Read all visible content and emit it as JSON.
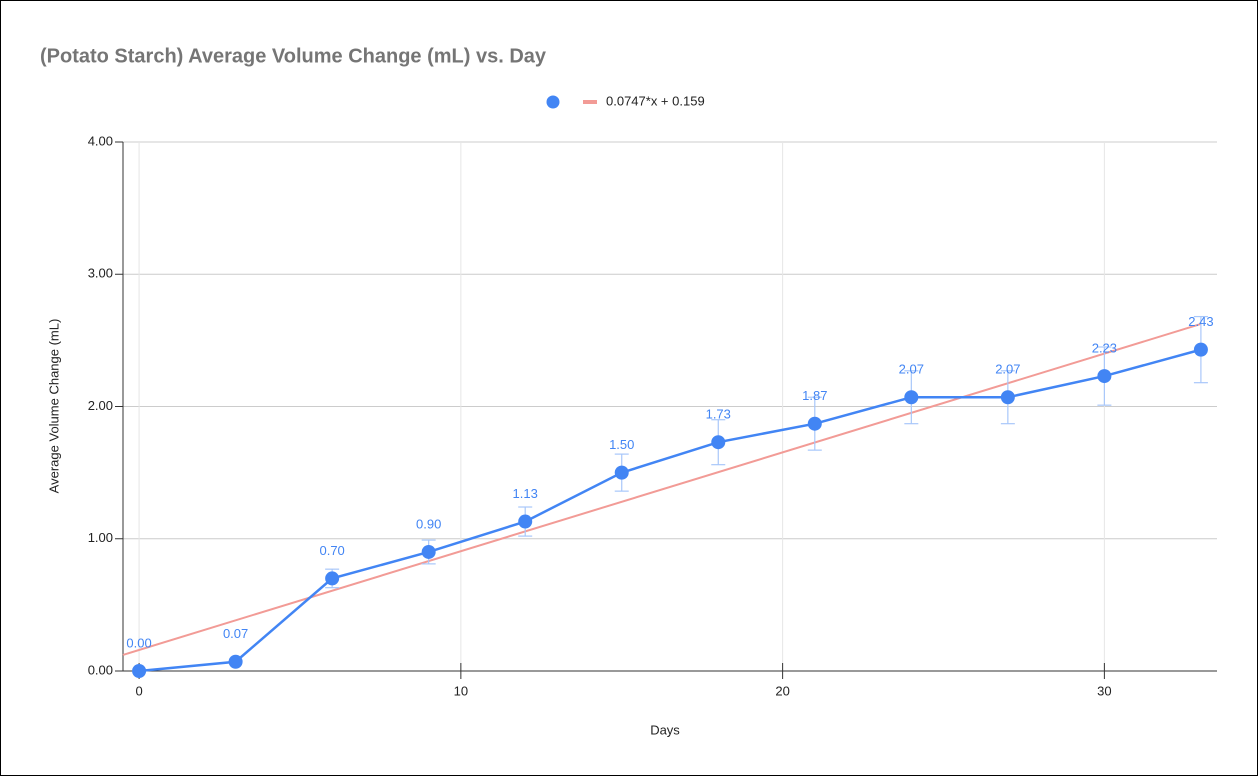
{
  "chart_data": {
    "type": "scatter",
    "title": "(Potato Starch) Average Volume Change (mL) vs. Day",
    "x_label": "Days",
    "y_label": "Average Volume Change (mL)",
    "x": [
      0,
      3,
      6,
      9,
      12,
      15,
      18,
      21,
      24,
      27,
      30,
      33
    ],
    "series": [
      {
        "color": "#4285f4",
        "values": [
          0,
          0.07,
          0.7,
          0.9,
          1.13,
          1.5,
          1.73,
          1.87,
          2.07,
          2.07,
          2.23,
          2.43
        ],
        "value_labels": [
          "0.00",
          "0.07",
          "0.70",
          "0.90",
          "1.13",
          "1.50",
          "1.73",
          "1.87",
          "2.07",
          "2.07",
          "2.23",
          "2.43"
        ],
        "errors": [
          0,
          0,
          0.07,
          0.09,
          0.11,
          0.14,
          0.17,
          0.2,
          0.2,
          0.2,
          0.22,
          0.25
        ],
        "error_color": "#a8c7fa"
      }
    ],
    "trendline": {
      "label": "0.0747*x + 0.159",
      "slope": 0.0747,
      "intercept": 0.159,
      "color": "#f29b96"
    },
    "xlim": [
      -0.5,
      33.5
    ],
    "ylim": [
      0,
      4
    ],
    "xticks": [
      0,
      10,
      20,
      30
    ],
    "yticks": [
      {
        "value": 0,
        "label": "0.00"
      },
      {
        "value": 1,
        "label": "1.00"
      },
      {
        "value": 2,
        "label": "2.00"
      },
      {
        "value": 3,
        "label": "3.00"
      },
      {
        "value": 4,
        "label": "4.00"
      }
    ],
    "grid": true
  }
}
